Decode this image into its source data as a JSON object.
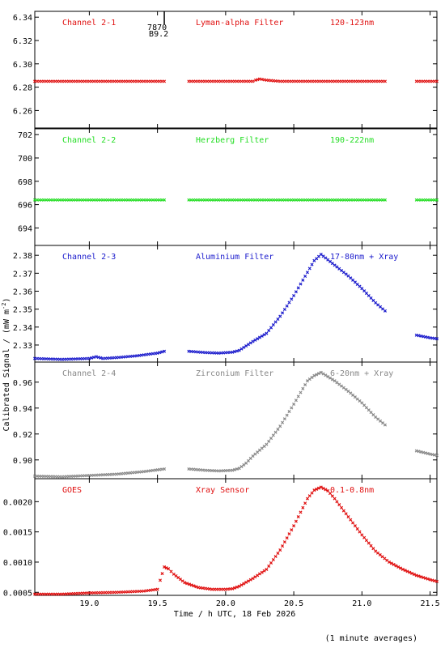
{
  "chart_data": {
    "type": "scatter",
    "xlabel": "Time / h UTC, 18 Feb 2026",
    "ylabel": "Calibrated Signal / (mW m",
    "ylabel_sup": "-2",
    "ylabel_close": ")",
    "footnote": "(1 minute averages)",
    "xlim": [
      18.6,
      21.55
    ],
    "x_ticks": [
      "19.0",
      "19.5",
      "20.0",
      "20.5",
      "21.0",
      "21.5"
    ],
    "marker": {
      "x": 19.55,
      "labels": [
        "7870",
        "B9.2"
      ]
    },
    "panels": [
      {
        "channel": "Channel 2-1",
        "filter": "Lyman-alpha Filter",
        "band": "120-123nm",
        "color": "#e01010",
        "ylim": [
          6.245,
          6.345
        ],
        "y_ticks": [
          "6.26",
          "6.28",
          "6.30",
          "6.32",
          "6.34"
        ],
        "series": [
          {
            "x": [
              18.6,
              19.55
            ],
            "y": [
              6.285,
              6.285
            ]
          },
          {
            "x": [
              19.73,
              20.1,
              20.2,
              20.22,
              20.25,
              20.3,
              20.4,
              21.17
            ],
            "y": [
              6.285,
              6.285,
              6.285,
              6.286,
              6.287,
              6.286,
              6.285,
              6.285
            ]
          },
          {
            "x": [
              21.4,
              21.55
            ],
            "y": [
              6.285,
              6.285
            ]
          }
        ]
      },
      {
        "channel": "Channel 2-2",
        "filter": "Herzberg Filter",
        "band": "190-222nm",
        "color": "#22dd22",
        "ylim": [
          692.5,
          702.5
        ],
        "y_ticks": [
          "694",
          "696",
          "698",
          "700",
          "702"
        ],
        "series": [
          {
            "x": [
              18.6,
              19.55
            ],
            "y": [
              696.4,
              696.4
            ]
          },
          {
            "x": [
              19.73,
              21.17
            ],
            "y": [
              696.4,
              696.4
            ]
          },
          {
            "x": [
              21.4,
              21.55
            ],
            "y": [
              696.4,
              696.4
            ]
          }
        ]
      },
      {
        "channel": "Channel 2-3",
        "filter": "Aluminium Filter",
        "band": "17-80nm + Xray",
        "color": "#1a1acc",
        "ylim": [
          2.3205,
          2.3855
        ],
        "y_ticks": [
          "2.33",
          "2.34",
          "2.35",
          "2.36",
          "2.37",
          "2.38"
        ],
        "series": [
          {
            "x": [
              18.6,
              18.8,
              19.0,
              19.05,
              19.1,
              19.2,
              19.35,
              19.5,
              19.55
            ],
            "y": [
              2.3225,
              2.322,
              2.3225,
              2.3235,
              2.3225,
              2.323,
              2.324,
              2.3255,
              2.3265
            ]
          },
          {
            "x": [
              19.73,
              19.85,
              19.95,
              20.05,
              20.1,
              20.15,
              20.2,
              20.3,
              20.4,
              20.5,
              20.6,
              20.65,
              20.7,
              20.8,
              20.9,
              21.0,
              21.1,
              21.17
            ],
            "y": [
              2.3265,
              2.3258,
              2.3255,
              2.326,
              2.327,
              2.3295,
              2.332,
              2.3365,
              2.346,
              2.3575,
              2.3705,
              2.377,
              2.3805,
              2.3745,
              2.3685,
              2.3615,
              2.3535,
              2.349
            ]
          },
          {
            "x": [
              21.4,
              21.5,
              21.55
            ],
            "y": [
              2.3355,
              2.334,
              2.3335
            ]
          }
        ]
      },
      {
        "channel": "Channel 2-4",
        "filter": "Zirconium Filter",
        "band": "6-20nm + Xray",
        "color": "#888888",
        "ylim": [
          0.8855,
          0.9755
        ],
        "y_ticks": [
          "0.90",
          "0.92",
          "0.94",
          "0.96"
        ],
        "series": [
          {
            "x": [
              18.6,
              18.8,
              19.0,
              19.2,
              19.4,
              19.55
            ],
            "y": [
              0.8875,
              0.887,
              0.888,
              0.889,
              0.891,
              0.893
            ]
          },
          {
            "x": [
              19.73,
              19.85,
              19.95,
              20.05,
              20.1,
              20.15,
              20.2,
              20.3,
              20.4,
              20.5,
              20.6,
              20.65,
              20.7,
              20.8,
              20.9,
              21.0,
              21.1,
              21.17
            ],
            "y": [
              0.893,
              0.892,
              0.8915,
              0.892,
              0.8935,
              0.8975,
              0.903,
              0.912,
              0.926,
              0.943,
              0.961,
              0.965,
              0.9675,
              0.961,
              0.953,
              0.944,
              0.933,
              0.927
            ]
          },
          {
            "x": [
              21.4,
              21.5,
              21.55
            ],
            "y": [
              0.907,
              0.9045,
              0.9035
            ]
          }
        ]
      },
      {
        "channel": "GOES",
        "filter": "Xray Sensor",
        "band": "0.1-0.8nm",
        "color": "#e01010",
        "ylim": [
          0.00045,
          0.00238
        ],
        "y_ticks": [
          "0.0005",
          "0.0010",
          "0.0015",
          "0.0020"
        ],
        "series": [
          {
            "x": [
              18.6,
              18.8,
              19.0,
              19.2,
              19.4,
              19.5,
              19.52,
              19.55,
              19.58,
              19.62,
              19.7,
              19.8,
              19.9,
              20.0,
              20.05,
              20.1,
              20.2,
              20.3,
              20.4,
              20.5,
              20.6,
              20.65,
              20.7,
              20.75,
              20.8,
              20.9,
              21.0,
              21.1,
              21.2,
              21.3,
              21.4,
              21.5,
              21.55
            ],
            "y": [
              0.00047,
              0.00047,
              0.00049,
              0.0005,
              0.00052,
              0.00055,
              0.0007,
              0.00092,
              0.00089,
              0.0008,
              0.00066,
              0.00058,
              0.00055,
              0.00055,
              0.00056,
              0.0006,
              0.00073,
              0.00088,
              0.0012,
              0.0016,
              0.00205,
              0.00219,
              0.00224,
              0.00218,
              0.00205,
              0.00175,
              0.00145,
              0.00118,
              0.001,
              0.00088,
              0.00078,
              0.00071,
              0.00068
            ]
          }
        ]
      }
    ]
  }
}
